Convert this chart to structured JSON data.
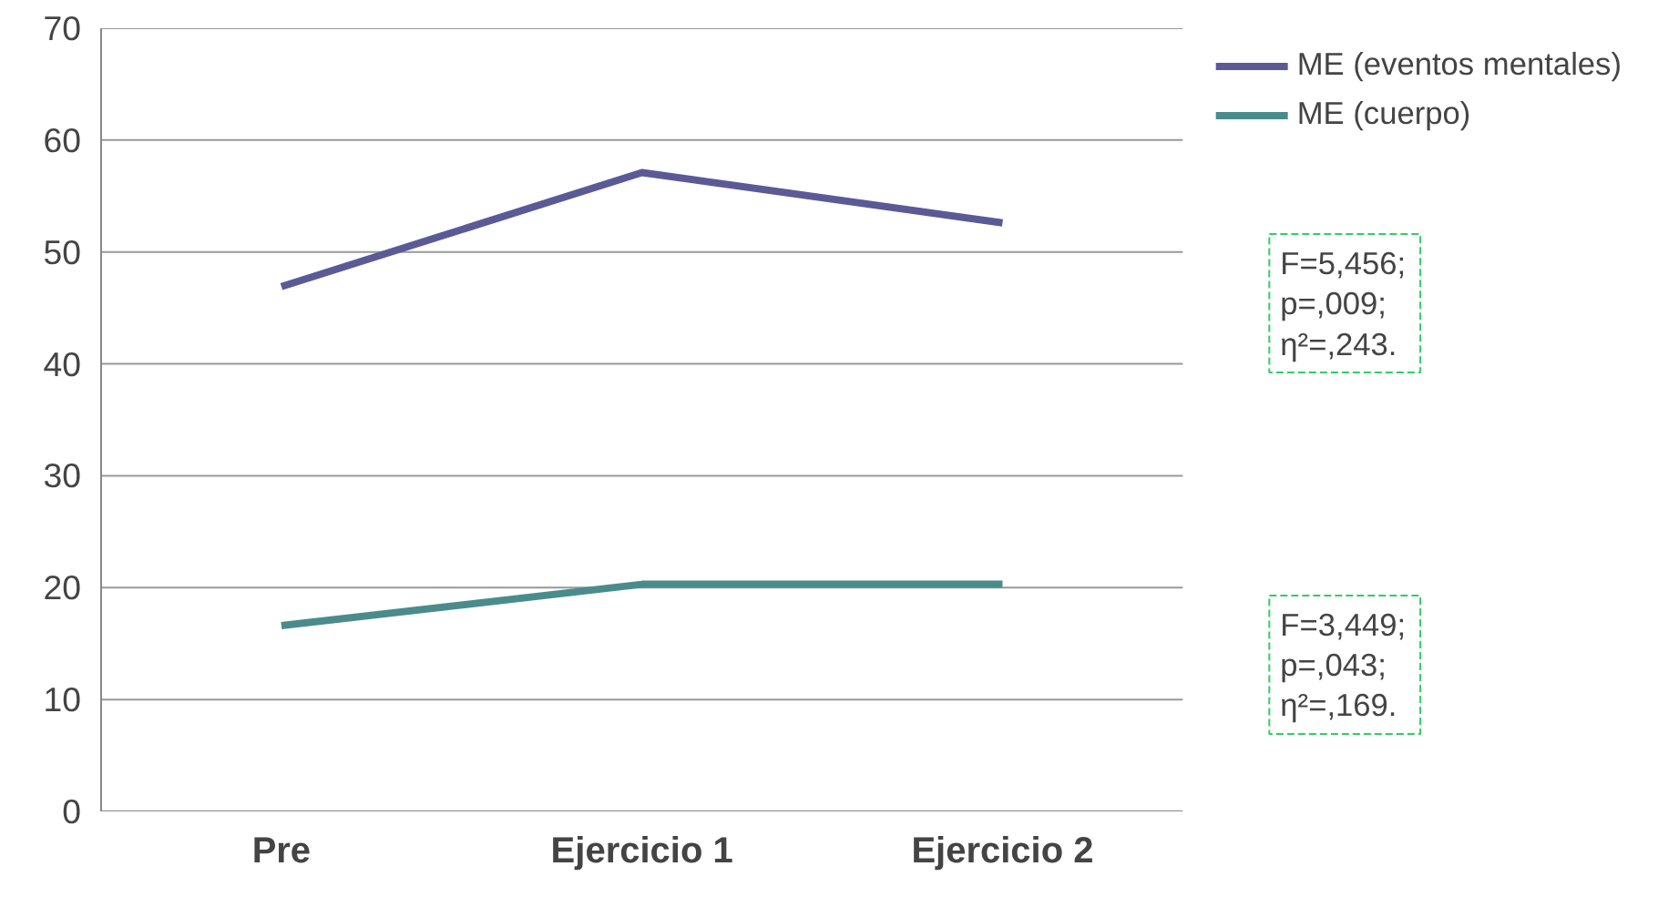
{
  "chart_data": {
    "type": "line",
    "categories": [
      "Pre",
      "Ejercicio 1",
      "Ejercicio 2"
    ],
    "series": [
      {
        "name": "ME (eventos mentales)",
        "color": "#5b5a96",
        "values": [
          46.9,
          57.1,
          52.6
        ]
      },
      {
        "name": "ME (cuerpo)",
        "color": "#4a8c8c",
        "values": [
          16.6,
          20.3,
          20.3
        ]
      }
    ],
    "ylim": [
      0,
      70
    ],
    "yticks": [
      0,
      10,
      20,
      30,
      40,
      50,
      60,
      70
    ],
    "grid": "y",
    "legend": "top right",
    "marker": "none",
    "line_style": "solid",
    "annotations": [
      "F=5,456;\np=,009;\nη²=,243.",
      "F=3,449;\np=,043;\nη²=,169."
    ]
  }
}
